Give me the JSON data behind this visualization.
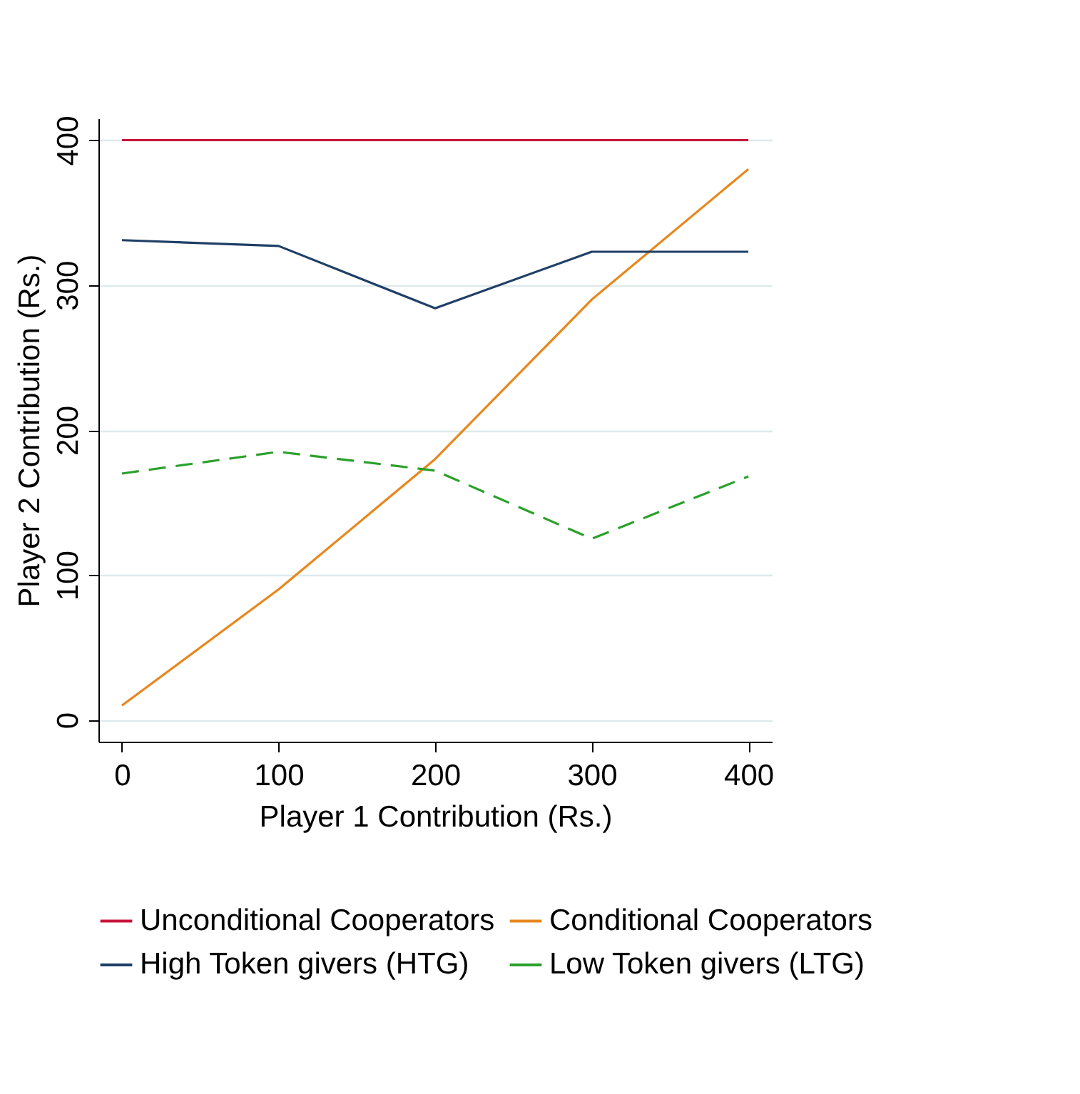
{
  "chart_data": {
    "type": "line",
    "xlabel": "Player 1 Contribution (Rs.)",
    "ylabel": "Player 2 Contribution (Rs.)",
    "x": [
      0,
      100,
      200,
      300,
      400
    ],
    "xlim": [
      -15,
      415
    ],
    "xticks": [
      0,
      100,
      200,
      300,
      400
    ],
    "ylim": [
      -15,
      415
    ],
    "yticks": [
      0,
      100,
      200,
      300,
      400
    ],
    "grid": "y",
    "legend": "bottom",
    "marker": "none",
    "series": [
      {
        "name": "Unconditional Cooperators",
        "color": "#c8143c",
        "line_style": "solid",
        "values": [
          400,
          400,
          400,
          400,
          400
        ]
      },
      {
        "name": "Conditional Cooperators",
        "color": "#e8871e",
        "line_style": "solid",
        "values": [
          10,
          90,
          180,
          290,
          380
        ]
      },
      {
        "name": "High Token givers (HTG)",
        "color": "#1f3f66",
        "line_style": "solid",
        "values": [
          331,
          327,
          284,
          323,
          323
        ]
      },
      {
        "name": "Low Token givers (LTG)",
        "color": "#2ca02c",
        "line_style": "dashed",
        "values": [
          170,
          185,
          172,
          125,
          168
        ]
      }
    ]
  }
}
